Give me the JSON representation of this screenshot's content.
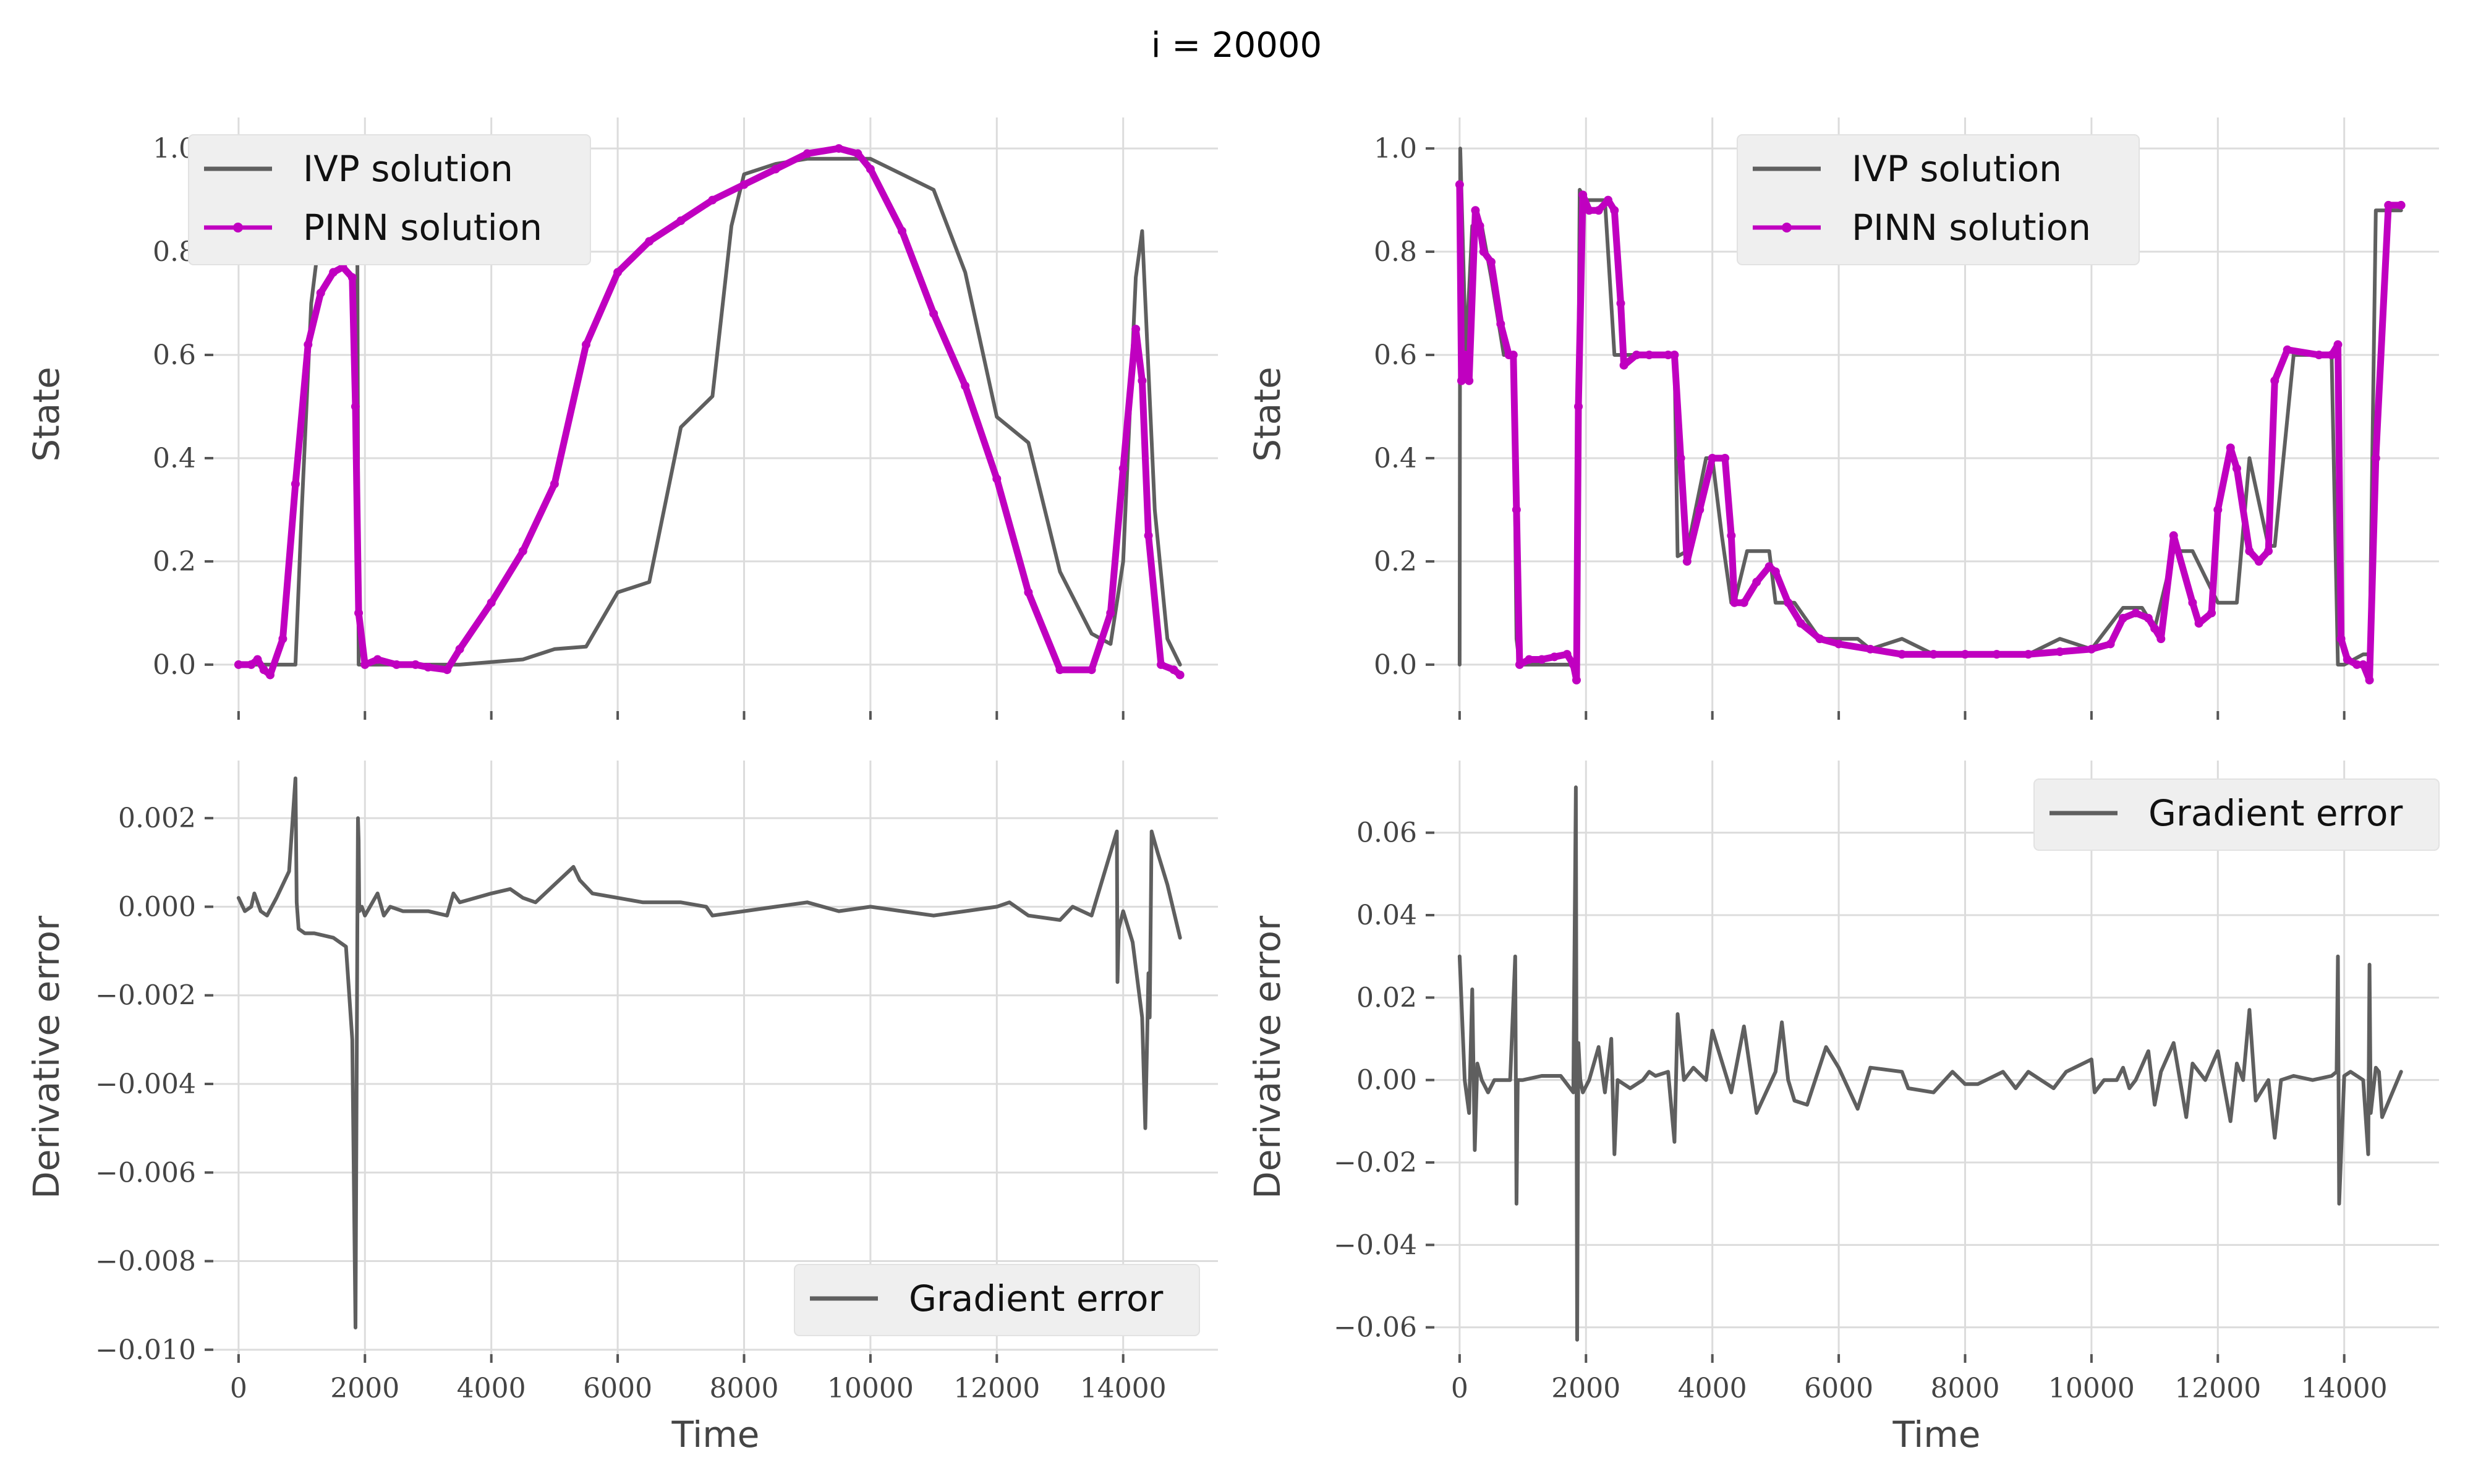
{
  "figure": {
    "title": "i = 20000"
  },
  "colors": {
    "ivp": "#5f5f5f",
    "pinn": "#c000c0",
    "gradient": "#5f5f5f",
    "legend_bg": "#efefef"
  },
  "chart_data": [
    {
      "id": "top-left",
      "type": "line",
      "xlabel": "",
      "ylabel": "State",
      "xlim": [
        -400,
        15500
      ],
      "ylim": [
        -0.09,
        1.06
      ],
      "xticks": [
        0,
        2000,
        4000,
        6000,
        8000,
        10000,
        12000,
        14000
      ],
      "xtick_labels": [],
      "yticks": [
        0.0,
        0.2,
        0.4,
        0.6,
        0.8,
        1.0
      ],
      "ytick_labels": [
        "0.0",
        "0.2",
        "0.4",
        "0.6",
        "0.8",
        "1.0"
      ],
      "grid": true,
      "legend": {
        "position": "top-left",
        "entries": [
          "IVP solution",
          "PINN solution"
        ]
      },
      "series": [
        {
          "name": "IVP solution",
          "style": "line",
          "x": [
            0,
            900,
            1000,
            1150,
            1300,
            1500,
            1700,
            1800,
            1880,
            1900,
            2000,
            2500,
            3000,
            3500,
            4500,
            5000,
            5500,
            6000,
            6500,
            7000,
            7500,
            7800,
            8000,
            8500,
            9000,
            9500,
            10000,
            10500,
            11000,
            11500,
            12000,
            12500,
            13000,
            13500,
            13800,
            14000,
            14200,
            14300,
            14500,
            14700,
            14900
          ],
          "y": [
            0.0,
            0.0,
            0.3,
            0.7,
            0.85,
            0.93,
            0.97,
            0.98,
            0.8,
            0.0,
            0.0,
            0.0,
            0.0,
            0.0,
            0.01,
            0.03,
            0.035,
            0.14,
            0.16,
            0.46,
            0.52,
            0.85,
            0.95,
            0.97,
            0.98,
            0.98,
            0.98,
            0.95,
            0.92,
            0.76,
            0.48,
            0.43,
            0.18,
            0.06,
            0.04,
            0.2,
            0.75,
            0.84,
            0.3,
            0.05,
            0.0
          ]
        },
        {
          "name": "PINN solution",
          "style": "line-marker",
          "x": [
            0,
            200,
            300,
            400,
            500,
            700,
            900,
            1100,
            1300,
            1500,
            1650,
            1800,
            1850,
            1900,
            2000,
            2200,
            2500,
            2800,
            3000,
            3300,
            3500,
            4000,
            4500,
            5000,
            5500,
            6000,
            6500,
            7000,
            7500,
            8000,
            8500,
            9000,
            9500,
            9800,
            10000,
            10500,
            11000,
            11500,
            12000,
            12500,
            13000,
            13500,
            13800,
            14000,
            14200,
            14300,
            14400,
            14600,
            14800,
            14900
          ],
          "y": [
            0.0,
            0.0,
            0.01,
            -0.01,
            -0.02,
            0.05,
            0.35,
            0.62,
            0.72,
            0.76,
            0.77,
            0.75,
            0.5,
            0.1,
            0.0,
            0.01,
            0.0,
            0.0,
            -0.005,
            -0.01,
            0.03,
            0.12,
            0.22,
            0.35,
            0.62,
            0.76,
            0.82,
            0.86,
            0.9,
            0.93,
            0.96,
            0.99,
            1.0,
            0.99,
            0.96,
            0.84,
            0.68,
            0.54,
            0.36,
            0.14,
            -0.01,
            -0.01,
            0.1,
            0.38,
            0.65,
            0.55,
            0.25,
            0.0,
            -0.01,
            -0.02
          ]
        }
      ]
    },
    {
      "id": "top-right",
      "type": "line",
      "xlabel": "",
      "ylabel": "State",
      "xlim": [
        -400,
        15500
      ],
      "ylim": [
        -0.09,
        1.06
      ],
      "xticks": [
        0,
        2000,
        4000,
        6000,
        8000,
        10000,
        12000,
        14000
      ],
      "xtick_labels": [],
      "yticks": [
        0.0,
        0.2,
        0.4,
        0.6,
        0.8,
        1.0
      ],
      "ytick_labels": [
        "0.0",
        "0.2",
        "0.4",
        "0.6",
        "0.8",
        "1.0"
      ],
      "grid": true,
      "legend": {
        "position": "top-center",
        "entries": [
          "IVP solution",
          "PINN solution"
        ]
      },
      "series": [
        {
          "name": "IVP solution",
          "style": "line",
          "x": [
            0,
            10,
            100,
            200,
            350,
            500,
            700,
            800,
            850,
            900,
            950,
            1800,
            1850,
            1900,
            2000,
            2300,
            2450,
            2500,
            2800,
            3400,
            3450,
            3600,
            3900,
            4000,
            4150,
            4300,
            4350,
            4550,
            4900,
            5000,
            5300,
            5700,
            6300,
            6500,
            7000,
            7500,
            8000,
            8500,
            9000,
            9500,
            10000,
            10500,
            10800,
            11000,
            11300,
            11600,
            12000,
            12300,
            12500,
            12800,
            12900,
            13200,
            13800,
            13900,
            14000,
            14300,
            14400,
            14500,
            14900
          ],
          "y": [
            0.0,
            1.0,
            0.6,
            0.85,
            0.85,
            0.75,
            0.6,
            0.6,
            0.6,
            0.05,
            0.0,
            0.0,
            0.0,
            0.92,
            0.9,
            0.9,
            0.6,
            0.6,
            0.6,
            0.6,
            0.21,
            0.22,
            0.4,
            0.4,
            0.25,
            0.12,
            0.12,
            0.22,
            0.22,
            0.12,
            0.12,
            0.05,
            0.05,
            0.03,
            0.05,
            0.02,
            0.02,
            0.02,
            0.02,
            0.05,
            0.03,
            0.11,
            0.11,
            0.07,
            0.22,
            0.22,
            0.12,
            0.12,
            0.4,
            0.23,
            0.23,
            0.6,
            0.6,
            0.0,
            0.0,
            0.02,
            0.02,
            0.88,
            0.88
          ]
        },
        {
          "name": "PINN solution",
          "style": "line-marker",
          "x": [
            0,
            30,
            80,
            150,
            250,
            320,
            380,
            500,
            650,
            780,
            850,
            900,
            950,
            1100,
            1300,
            1500,
            1700,
            1800,
            1850,
            1880,
            1950,
            2050,
            2200,
            2350,
            2450,
            2550,
            2600,
            2800,
            3000,
            3300,
            3400,
            3500,
            3600,
            3800,
            4000,
            4200,
            4300,
            4350,
            4500,
            4700,
            4900,
            5000,
            5200,
            5400,
            5700,
            6000,
            6500,
            7000,
            7500,
            8000,
            8500,
            9000,
            9500,
            10000,
            10300,
            10500,
            10700,
            10900,
            11000,
            11100,
            11300,
            11600,
            11700,
            11900,
            12000,
            12200,
            12300,
            12500,
            12650,
            12800,
            12900,
            13100,
            13600,
            13800,
            13900,
            13950,
            14050,
            14200,
            14300,
            14400,
            14500,
            14700,
            14900
          ],
          "y": [
            0.93,
            0.55,
            0.6,
            0.55,
            0.88,
            0.85,
            0.8,
            0.78,
            0.66,
            0.6,
            0.6,
            0.3,
            0.0,
            0.01,
            0.01,
            0.015,
            0.02,
            0.0,
            -0.03,
            0.5,
            0.91,
            0.88,
            0.88,
            0.9,
            0.88,
            0.7,
            0.58,
            0.6,
            0.6,
            0.6,
            0.6,
            0.4,
            0.2,
            0.3,
            0.4,
            0.4,
            0.25,
            0.12,
            0.12,
            0.16,
            0.19,
            0.18,
            0.12,
            0.08,
            0.05,
            0.04,
            0.03,
            0.02,
            0.02,
            0.02,
            0.02,
            0.02,
            0.025,
            0.03,
            0.04,
            0.09,
            0.1,
            0.09,
            0.07,
            0.05,
            0.25,
            0.12,
            0.08,
            0.1,
            0.3,
            0.42,
            0.38,
            0.22,
            0.2,
            0.22,
            0.55,
            0.61,
            0.6,
            0.6,
            0.62,
            0.05,
            0.01,
            0.0,
            0.0,
            -0.03,
            0.4,
            0.89,
            0.89
          ]
        }
      ]
    },
    {
      "id": "bottom-left",
      "type": "line",
      "xlabel": "Time",
      "ylabel": "Derivative error",
      "xlim": [
        -400,
        15500
      ],
      "ylim": [
        -0.0101,
        0.0033
      ],
      "xticks": [
        0,
        2000,
        4000,
        6000,
        8000,
        10000,
        12000,
        14000
      ],
      "xtick_labels": [
        "0",
        "2000",
        "4000",
        "6000",
        "8000",
        "10000",
        "12000",
        "14000"
      ],
      "yticks": [
        -0.01,
        -0.008,
        -0.006,
        -0.004,
        -0.002,
        0.0,
        0.002
      ],
      "ytick_labels": [
        "−0.010",
        "−0.008",
        "−0.006",
        "−0.004",
        "−0.002",
        "0.000",
        "0.002"
      ],
      "grid": true,
      "legend": {
        "position": "bottom-right",
        "entries": [
          "Gradient error"
        ]
      },
      "series": [
        {
          "name": "Gradient error",
          "style": "line",
          "x": [
            0,
            100,
            200,
            250,
            350,
            450,
            600,
            800,
            900,
            920,
            950,
            1050,
            1200,
            1500,
            1700,
            1800,
            1850,
            1880,
            1890,
            1900,
            1910,
            1950,
            2000,
            2200,
            2300,
            2400,
            2600,
            3000,
            3300,
            3400,
            3500,
            4000,
            4300,
            4500,
            4700,
            5000,
            5300,
            5400,
            5600,
            6000,
            6400,
            7000,
            7400,
            7500,
            8000,
            8500,
            9000,
            9500,
            10000,
            10500,
            11000,
            11500,
            12000,
            12200,
            12500,
            13000,
            13200,
            13500,
            13900,
            13910,
            13930,
            14000,
            14150,
            14300,
            14350,
            14400,
            14420,
            14450,
            14550,
            14700,
            14900
          ],
          "y": [
            0.0002,
            -0.0001,
            0.0,
            0.0003,
            -0.0001,
            -0.0002,
            0.0002,
            0.0008,
            0.0029,
            0.0001,
            -0.0005,
            -0.0006,
            -0.0006,
            -0.0007,
            -0.0009,
            -0.003,
            -0.0095,
            -0.0005,
            0.002,
            0.0015,
            -0.0001,
            0.0,
            -0.0002,
            0.0003,
            -0.0002,
            0.0,
            -0.0001,
            -0.0001,
            -0.0002,
            0.0003,
            0.0001,
            0.0003,
            0.0004,
            0.0002,
            0.0001,
            0.0005,
            0.0009,
            0.0006,
            0.0003,
            0.0002,
            0.0001,
            0.0001,
            0.0,
            -0.0002,
            -0.0001,
            0.0,
            0.0001,
            -0.0001,
            0.0,
            -0.0001,
            -0.0002,
            -0.0001,
            0.0,
            0.0001,
            -0.0002,
            -0.0003,
            0.0,
            -0.0002,
            0.0017,
            -0.0017,
            -0.0005,
            -0.0001,
            -0.0008,
            -0.0025,
            -0.005,
            -0.0015,
            -0.0025,
            0.0017,
            0.0012,
            0.0005,
            -0.0007
          ]
        }
      ]
    },
    {
      "id": "bottom-right",
      "type": "line",
      "xlabel": "Time",
      "ylabel": "Derivative error",
      "xlim": [
        -400,
        15500
      ],
      "ylim": [
        -0.0665,
        0.0775
      ],
      "xticks": [
        0,
        2000,
        4000,
        6000,
        8000,
        10000,
        12000,
        14000
      ],
      "xtick_labels": [
        "0",
        "2000",
        "4000",
        "6000",
        "8000",
        "10000",
        "12000",
        "14000"
      ],
      "yticks": [
        -0.06,
        -0.04,
        -0.02,
        0.0,
        0.02,
        0.04,
        0.06
      ],
      "ytick_labels": [
        "−0.06",
        "−0.04",
        "−0.02",
        "0.00",
        "0.02",
        "0.04",
        "0.06"
      ],
      "grid": true,
      "legend": {
        "position": "top-right",
        "entries": [
          "Gradient error"
        ]
      },
      "series": [
        {
          "name": "Gradient error",
          "style": "line",
          "x": [
            0,
            80,
            150,
            200,
            240,
            280,
            350,
            450,
            550,
            650,
            800,
            880,
            900,
            920,
            1000,
            1300,
            1600,
            1800,
            1840,
            1860,
            1880,
            1910,
            1950,
            2050,
            2200,
            2300,
            2400,
            2450,
            2500,
            2700,
            2900,
            3000,
            3100,
            3300,
            3400,
            3450,
            3550,
            3700,
            3900,
            4000,
            4200,
            4300,
            4500,
            4700,
            5000,
            5100,
            5200,
            5300,
            5500,
            5800,
            6000,
            6300,
            6500,
            7000,
            7100,
            7500,
            7800,
            8000,
            8200,
            8600,
            8800,
            9000,
            9400,
            9600,
            10000,
            10050,
            10200,
            10400,
            10500,
            10600,
            10700,
            10900,
            11000,
            11100,
            11300,
            11500,
            11600,
            11800,
            12000,
            12200,
            12300,
            12400,
            12500,
            12600,
            12800,
            12900,
            13000,
            13200,
            13500,
            13800,
            13880,
            13900,
            13920,
            14000,
            14100,
            14300,
            14380,
            14400,
            14420,
            14500,
            14550,
            14600,
            14900
          ],
          "y": [
            0.03,
            0.0,
            -0.008,
            0.022,
            -0.017,
            0.004,
            0.0,
            -0.003,
            0.0,
            0.0,
            0.0,
            0.03,
            -0.03,
            0.0,
            0.0,
            0.001,
            0.001,
            -0.003,
            0.071,
            -0.063,
            0.009,
            0.0,
            -0.003,
            0.0,
            0.008,
            -0.003,
            0.01,
            -0.018,
            0.0,
            -0.002,
            0.0,
            0.002,
            0.001,
            0.002,
            -0.015,
            0.016,
            0.0,
            0.003,
            0.0,
            0.012,
            0.002,
            -0.003,
            0.013,
            -0.008,
            0.002,
            0.014,
            0.0,
            -0.005,
            -0.006,
            0.008,
            0.003,
            -0.007,
            0.003,
            0.002,
            -0.002,
            -0.003,
            0.002,
            -0.001,
            -0.001,
            0.002,
            -0.002,
            0.002,
            -0.002,
            0.002,
            0.005,
            -0.003,
            0.0,
            0.0,
            0.003,
            -0.002,
            0.0,
            0.007,
            -0.006,
            0.002,
            0.009,
            -0.009,
            0.004,
            0.0,
            0.007,
            -0.01,
            0.004,
            0.0,
            0.017,
            -0.005,
            0.0,
            -0.014,
            0.0,
            0.001,
            0.0,
            0.001,
            0.002,
            0.03,
            -0.03,
            0.001,
            0.002,
            0.0,
            -0.018,
            0.028,
            -0.008,
            0.003,
            0.002,
            -0.009,
            0.002
          ]
        }
      ]
    }
  ]
}
